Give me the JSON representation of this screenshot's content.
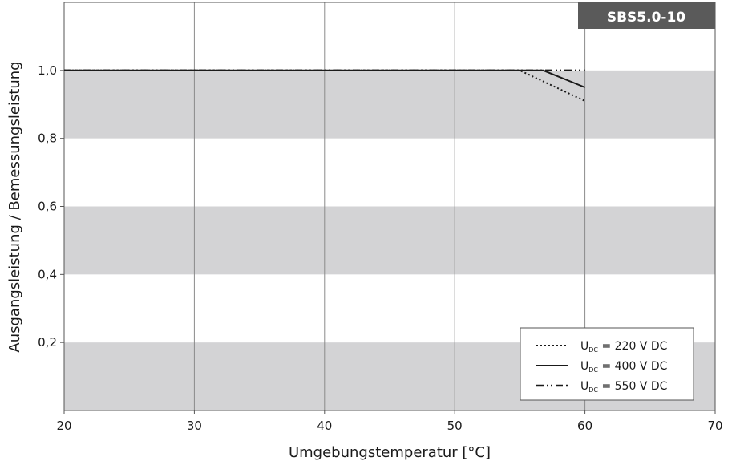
{
  "chart_data": {
    "type": "line",
    "badge": "SBS5.0-10",
    "xlabel": "Umgebungstemperatur [°C]",
    "ylabel": "Ausgangsleistung / Bemessungsleistung",
    "xlim": [
      20,
      70
    ],
    "ylim": [
      0,
      1.2
    ],
    "x_ticks": [
      {
        "value": 20,
        "label": "20"
      },
      {
        "value": 30,
        "label": "30"
      },
      {
        "value": 40,
        "label": "40"
      },
      {
        "value": 50,
        "label": "50"
      },
      {
        "value": 60,
        "label": "60"
      },
      {
        "value": 70,
        "label": "70"
      }
    ],
    "y_ticks": [
      {
        "value": 0.2,
        "label": "0,2"
      },
      {
        "value": 0.4,
        "label": "0,4"
      },
      {
        "value": 0.6,
        "label": "0,6"
      },
      {
        "value": 0.8,
        "label": "0,8"
      },
      {
        "value": 1.0,
        "label": "1,0"
      }
    ],
    "grid": {
      "vertical_lines": true,
      "horizontal_bands": true
    },
    "legend_position": "bottom-right",
    "series": [
      {
        "name_main": "U",
        "name_sub": "DC",
        "name_rest": " = 220 V DC",
        "dash": "2,3",
        "x": [
          20,
          55,
          60
        ],
        "y": [
          1.0,
          1.0,
          0.91
        ]
      },
      {
        "name_main": "U",
        "name_sub": "DC",
        "name_rest": " = 400 V DC",
        "dash": "",
        "x": [
          20,
          56.8,
          60
        ],
        "y": [
          1.0,
          1.0,
          0.95
        ]
      },
      {
        "name_main": "U",
        "name_sub": "DC",
        "name_rest": " = 550 V DC",
        "dash": "9,4,2,3,2,4",
        "x": [
          20,
          60
        ],
        "y": [
          1.0,
          1.0
        ]
      }
    ]
  },
  "colors": {
    "band": "#d3d3d5",
    "badge_bg": "#5a5a5a",
    "frame": "#555555",
    "grid": "#8a8a8a",
    "line": "#1a1a1a"
  }
}
